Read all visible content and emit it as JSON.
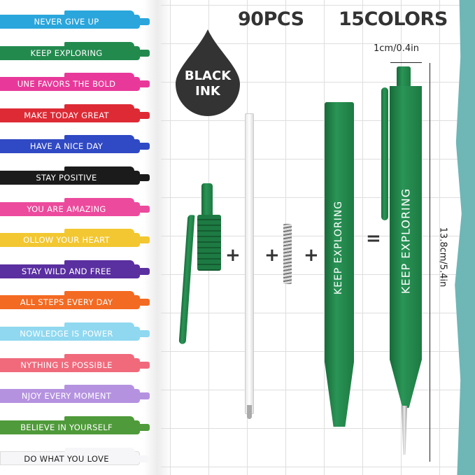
{
  "headline": {
    "count": "90PCS",
    "colors": "15COLORS"
  },
  "ink_badge": {
    "line1": "BLACK",
    "line2": "INK",
    "color": "#333333"
  },
  "dimensions": {
    "width": "1cm/0.4in",
    "length": "13.8cm/5.4in"
  },
  "assembly": {
    "plus1": "+",
    "plus2": "+",
    "plus3": "+",
    "equals": "=",
    "barrel_text": "KEEP EXPLORING",
    "pen_text": "KEEP EXPLORING"
  },
  "pens": [
    {
      "text": "NEVER GIVE UP",
      "color": "#2aa6dc"
    },
    {
      "text": "KEEP EXPLORING",
      "color": "#238a4e"
    },
    {
      "text": "UNE FAVORS THE BOLD",
      "color": "#e8399a"
    },
    {
      "text": "MAKE TODAY GREAT",
      "color": "#dd2a35"
    },
    {
      "text": "HAVE A NICE DAY",
      "color": "#3049c4"
    },
    {
      "text": "STAY POSITIVE",
      "color": "#1b1b1b"
    },
    {
      "text": "YOU ARE AMAZING",
      "color": "#ec4a9d"
    },
    {
      "text": "OLLOW YOUR HEART",
      "color": "#f2c731"
    },
    {
      "text": "STAY WILD AND FREE",
      "color": "#5a2fa0"
    },
    {
      "text": "ALL STEPS EVERY DAY",
      "color": "#f36a22"
    },
    {
      "text": "NOWLEDGE IS POWER",
      "color": "#8fd8f0"
    },
    {
      "text": "NYTHING IS POSSIBLE",
      "color": "#f06a7c"
    },
    {
      "text": "NJOY EVERY MOMENT",
      "color": "#b592e0"
    },
    {
      "text": "BELIEVE IN YOURSELF",
      "color": "#4f9a3a"
    },
    {
      "text": "DO WHAT YOU LOVE",
      "color": "#f6f6f8",
      "text_color": "#222222"
    }
  ]
}
